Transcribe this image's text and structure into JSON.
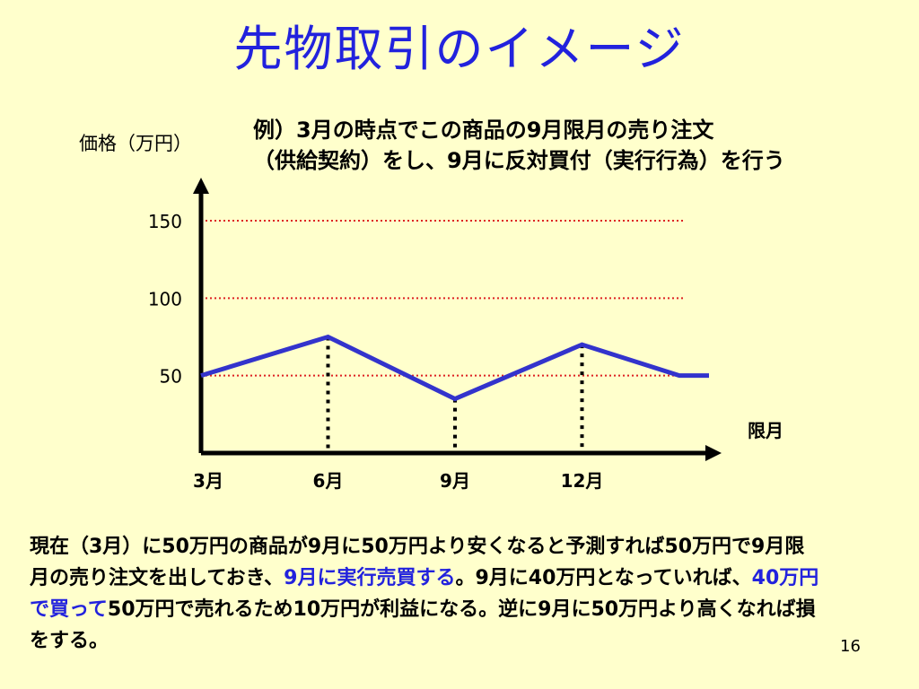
{
  "slide": {
    "title": "先物取引のイメージ",
    "example_line1": "例）3月の時点でこの商品の9月限月の売り注文",
    "example_line2": "（供給契約）をし、9月に反対買付（実行行為）を行う",
    "body_part1": "現在（3月）に50万円の商品が9月に50万円より安くなると予測すれば50万円で9月限月の売り注文を出しておき、",
    "body_highlight1": "9月に実行売買する",
    "body_part2": "。9月に40万円となっていれば、",
    "body_highlight2": "40万円で買って",
    "body_part3": "50万円で売れるため10万円が利益になる。逆に9月に50万円より高くなれば損をする。",
    "page_number": "16"
  },
  "colors": {
    "background": "#FFFFCC",
    "title": "#2222DD",
    "line": "#3333CC",
    "reference_lines": "#DD2222",
    "axis": "#000000"
  },
  "chart_data": {
    "type": "line",
    "ylabel": "価格（万円）",
    "xlabel": "限月",
    "ylim": [
      0,
      160
    ],
    "yticks": [
      {
        "value": 50,
        "label": "50"
      },
      {
        "value": 100,
        "label": "100"
      },
      {
        "value": 150,
        "label": "150"
      }
    ],
    "xticks": [
      {
        "value": 0,
        "label": "3月"
      },
      {
        "value": 3,
        "label": "6月"
      },
      {
        "value": 6,
        "label": "9月"
      },
      {
        "value": 9,
        "label": "12月"
      }
    ],
    "xlim": [
      0,
      12
    ],
    "series": [
      {
        "points": [
          [
            0,
            50
          ],
          [
            3,
            75
          ],
          [
            6,
            35
          ],
          [
            9,
            70
          ],
          [
            11.3,
            50
          ],
          [
            12,
            50
          ]
        ]
      }
    ],
    "reference_lines": [
      50,
      100,
      150
    ],
    "dropdown_x": [
      3,
      6,
      9
    ],
    "grid": false
  }
}
